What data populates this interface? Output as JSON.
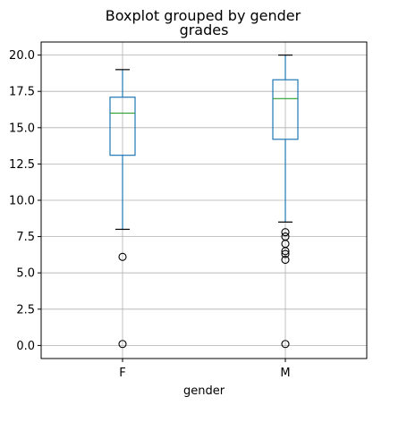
{
  "chart_data": {
    "type": "boxplot",
    "suptitle": "Boxplot grouped by gender",
    "title": "grades",
    "xlabel": "gender",
    "ylabel": "",
    "ylim": [
      -0.9,
      20.9
    ],
    "yticks": [
      0.0,
      2.5,
      5.0,
      7.5,
      10.0,
      12.5,
      15.0,
      17.5,
      20.0
    ],
    "ytick_labels": [
      "0.0",
      "2.5",
      "5.0",
      "7.5",
      "10.0",
      "12.5",
      "15.0",
      "17.5",
      "20.0"
    ],
    "grid": true,
    "categories": [
      "F",
      "M"
    ],
    "groups": [
      {
        "name": "F",
        "whisker_low": 8.0,
        "q1": 13.1,
        "median": 16.0,
        "q3": 17.1,
        "whisker_high": 19.0,
        "outliers": [
          6.1,
          0.1
        ]
      },
      {
        "name": "M",
        "whisker_low": 8.5,
        "q1": 14.2,
        "median": 17.0,
        "q3": 18.3,
        "whisker_high": 20.0,
        "outliers": [
          7.8,
          7.5,
          7.0,
          6.5,
          6.3,
          5.9,
          0.1
        ]
      }
    ],
    "colors": {
      "box": "#1f77b4",
      "whisker": "#1f77b4",
      "median": "#2ca02c",
      "caps": "#000000",
      "outlier": "#000000",
      "grid": "#b0b0b0",
      "axes": "#000000"
    }
  }
}
